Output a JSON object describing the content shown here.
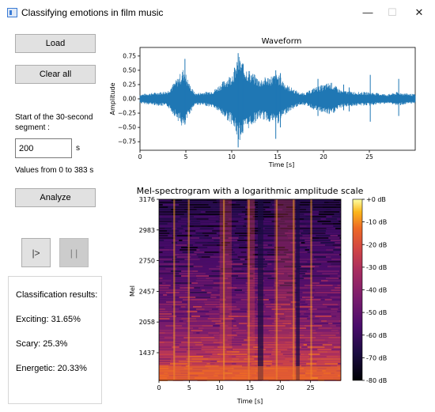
{
  "window": {
    "title": "Classifying emotions in film music",
    "minimize_glyph": "—",
    "maximize_glyph": "☐",
    "close_glyph": "✕"
  },
  "controls": {
    "load_label": "Load",
    "clear_label": "Clear all",
    "segment_label_line1": "Start of the 30-second",
    "segment_label_line2": "segment :",
    "start_value": "200",
    "unit": "s",
    "range_hint": "Values from 0 to 383 s",
    "analyze_label": "Analyze",
    "play_label": "|>",
    "pause_label": "| |"
  },
  "results": {
    "heading": "Classification results:",
    "items": [
      {
        "label": "Exciting: 31.65%"
      },
      {
        "label": "Scary: 25.3%"
      },
      {
        "label": "Energetic: 20.33%"
      }
    ]
  },
  "chart_data": [
    {
      "type": "line",
      "title": "Waveform",
      "xlabel": "Time [s]",
      "ylabel": "Amplitude",
      "xlim": [
        0,
        30
      ],
      "ylim": [
        -0.9,
        0.9
      ],
      "x_ticks": [
        0,
        5,
        10,
        15,
        20,
        25
      ],
      "y_ticks": [
        0.75,
        0.5,
        0.25,
        0.0,
        -0.25,
        -0.5,
        -0.75
      ],
      "y_tick_labels": [
        "0.75",
        "0.50",
        "0.25",
        "0.00",
        "−0.25",
        "−0.50",
        "−0.75"
      ],
      "envelope": [
        [
          0,
          0.08
        ],
        [
          1,
          0.1
        ],
        [
          2,
          0.12
        ],
        [
          3,
          0.14
        ],
        [
          4,
          0.35
        ],
        [
          4.8,
          0.55
        ],
        [
          5.3,
          0.3
        ],
        [
          6,
          0.1
        ],
        [
          7,
          0.12
        ],
        [
          8,
          0.15
        ],
        [
          9,
          0.3
        ],
        [
          10,
          0.45
        ],
        [
          10.8,
          0.75
        ],
        [
          11.3,
          0.6
        ],
        [
          12,
          0.5
        ],
        [
          13,
          0.35
        ],
        [
          14,
          0.4
        ],
        [
          15,
          0.45
        ],
        [
          15.5,
          0.35
        ],
        [
          16,
          0.25
        ],
        [
          17,
          0.15
        ],
        [
          17.5,
          0.1
        ],
        [
          18.2,
          0.12
        ],
        [
          19,
          0.2
        ],
        [
          20,
          0.25
        ],
        [
          20.8,
          0.3
        ],
        [
          21.5,
          0.2
        ],
        [
          22,
          0.15
        ],
        [
          23,
          0.13
        ],
        [
          24,
          0.12
        ],
        [
          25,
          0.12
        ],
        [
          26,
          0.1
        ],
        [
          27,
          0.08
        ],
        [
          28,
          0.12
        ],
        [
          29,
          0.1
        ],
        [
          30,
          0.08
        ]
      ],
      "spikes": [
        [
          4.9,
          0.7,
          -0.45
        ],
        [
          10.7,
          0.8,
          -0.85
        ],
        [
          11.2,
          0.62,
          -0.6
        ],
        [
          14.8,
          0.5,
          -0.7
        ],
        [
          15.3,
          0.45,
          -0.5
        ],
        [
          19.4,
          0.35,
          -0.3
        ],
        [
          22.2,
          0.25,
          -0.2
        ],
        [
          22.8,
          0.2,
          -0.22
        ],
        [
          25.1,
          0.42,
          -0.4
        ],
        [
          28.2,
          0.35,
          -0.3
        ]
      ],
      "color": "#1f77b4"
    },
    {
      "type": "heatmap",
      "title": "Mel-spectrogram with a logarithmic amplitude scale",
      "xlabel": "Time [s]",
      "ylabel": "Mel",
      "xlim": [
        0,
        30
      ],
      "x_ticks": [
        0,
        5,
        10,
        15,
        20,
        25
      ],
      "y_tick_labels": [
        "3176",
        "2983",
        "2750",
        "2457",
        "2058",
        "1437"
      ],
      "colorbar_ticks": [
        "+0 dB",
        "-10 dB",
        "-20 dB",
        "-30 dB",
        "-40 dB",
        "-50 dB",
        "-60 dB",
        "-70 dB",
        "-80 dB"
      ],
      "colormap": "inferno",
      "onsets": [
        2.5,
        4.9,
        10.7,
        14.8,
        19.4,
        22.2,
        25.1
      ],
      "bright_regions": [
        [
          10,
          12,
          0.55
        ],
        [
          14.5,
          15.8,
          0.6
        ],
        [
          19,
          22.5,
          0.5
        ]
      ]
    }
  ]
}
